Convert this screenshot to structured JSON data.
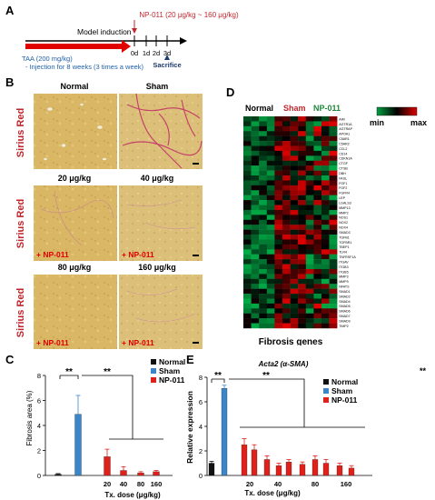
{
  "panel_a": {
    "letter": "A",
    "drug_label": "NP-011 (20 μg/kg ~ 160 μg/kg)",
    "model_label": "Model induction",
    "taa_label": "TAA (200 mg/kg)",
    "injection_note": "- Injection for 8 weeks (3 times a week)",
    "days": [
      "0d",
      "1d",
      "2d",
      "3d"
    ],
    "sacrifice": "Sacrifice",
    "colors": {
      "drug": "#c0272d",
      "taa_text": "#1f5fa8",
      "arrow": "#e00000",
      "sacrifice": "#1f3a6e"
    }
  },
  "panel_b": {
    "letter": "B",
    "row_label": "Sirius Red",
    "images": [
      {
        "title": "Normal",
        "overlay": ""
      },
      {
        "title": "Sham",
        "overlay": ""
      },
      {
        "title": "20 μg/kg",
        "overlay": "+ NP-011"
      },
      {
        "title": "40 μg/kg",
        "overlay": "+ NP-011"
      },
      {
        "title": "80 μg/kg",
        "overlay": "+ NP-011"
      },
      {
        "title": "160 μg/kg",
        "overlay": "+ NP-011"
      }
    ]
  },
  "panel_c": {
    "letter": "C",
    "ylabel": "Fibrosis area (%)",
    "xlabel": "Tx. dose (μg/kg)",
    "legend": [
      "Normal",
      "Sham",
      "NP-011"
    ],
    "significance": [
      "**",
      "**"
    ],
    "chart_data": {
      "type": "bar",
      "categories": [
        "Normal",
        "Sham",
        "20",
        "40",
        "80",
        "160"
      ],
      "values": [
        0.1,
        4.9,
        1.5,
        0.4,
        0.2,
        0.3
      ],
      "errors": [
        0.05,
        1.5,
        0.6,
        0.3,
        0.1,
        0.1
      ],
      "group": [
        "Normal",
        "Sham",
        "NP-011",
        "NP-011",
        "NP-011",
        "NP-011"
      ],
      "yticks": [
        0,
        2,
        4,
        6,
        8
      ],
      "ylim": [
        0,
        8
      ],
      "colors": {
        "Normal": "#111111",
        "Sham": "#3a86c8",
        "NP-011": "#e0201b"
      }
    }
  },
  "panel_d": {
    "letter": "D",
    "groups": [
      "Normal",
      "Sham",
      "NP-011"
    ],
    "group_colors": [
      "#000000",
      "#c0272d",
      "#1e8a3a"
    ],
    "scale_min": "min",
    "scale_max": "max",
    "footer": "Fibrosis genes",
    "genes": [
      "AIM",
      "AGTR1A",
      "AGTRAP",
      "APOA1",
      "C5AR1",
      "C5AR2",
      "CCL2",
      "CD14",
      "CDKN1A",
      "CTGF",
      "CTSB",
      "DBH",
      "FASL",
      "FGF1",
      "FGF2",
      "FGFR4",
      "LEP",
      "LGALS3",
      "MMP13",
      "MMP2",
      "NOS1",
      "NOX2",
      "NOX4",
      "SMAD3",
      "TGFB1",
      "TGFBR1",
      "TBEP1",
      "TLR4",
      "TNFRSF1A",
      "ITGAV",
      "ITGB3",
      "ITGB5",
      "MMP3",
      "MMP9",
      "NFATS",
      "SMAD1",
      "SMAD2",
      "SMAD4",
      "SMAD5",
      "SMAD6",
      "SMAD7",
      "SMAD9",
      "TIMP2"
    ]
  },
  "panel_e": {
    "letter": "E",
    "title": "Acta2 (α-SMA)",
    "ylabel": "Relative expression",
    "xlabel": "Tx. dose (μg/kg)",
    "legend": [
      "Normal",
      "Sham",
      "NP-011"
    ],
    "significance": [
      "**",
      "**"
    ],
    "corner_mark": "**",
    "chart_data": {
      "type": "bar",
      "categories": [
        "Normal",
        "Sham",
        "20",
        "20",
        "40",
        "40",
        "40",
        "80",
        "80",
        "80",
        "160",
        "160"
      ],
      "x_tick_labels": [
        "20",
        "40",
        "80",
        "160"
      ],
      "values": [
        1.0,
        7.1,
        2.5,
        2.1,
        1.3,
        0.8,
        1.1,
        0.9,
        1.3,
        1.0,
        0.8,
        0.6
      ],
      "errors": [
        0.15,
        0.25,
        0.5,
        0.4,
        0.3,
        0.2,
        0.2,
        0.2,
        0.3,
        0.3,
        0.2,
        0.2
      ],
      "group": [
        "Normal",
        "Sham",
        "NP-011",
        "NP-011",
        "NP-011",
        "NP-011",
        "NP-011",
        "NP-011",
        "NP-011",
        "NP-011",
        "NP-011",
        "NP-011"
      ],
      "yticks": [
        0,
        2,
        4,
        6,
        8
      ],
      "ylim": [
        0,
        8
      ],
      "colors": {
        "Normal": "#111111",
        "Sham": "#3a86c8",
        "NP-011": "#e0201b"
      }
    }
  }
}
